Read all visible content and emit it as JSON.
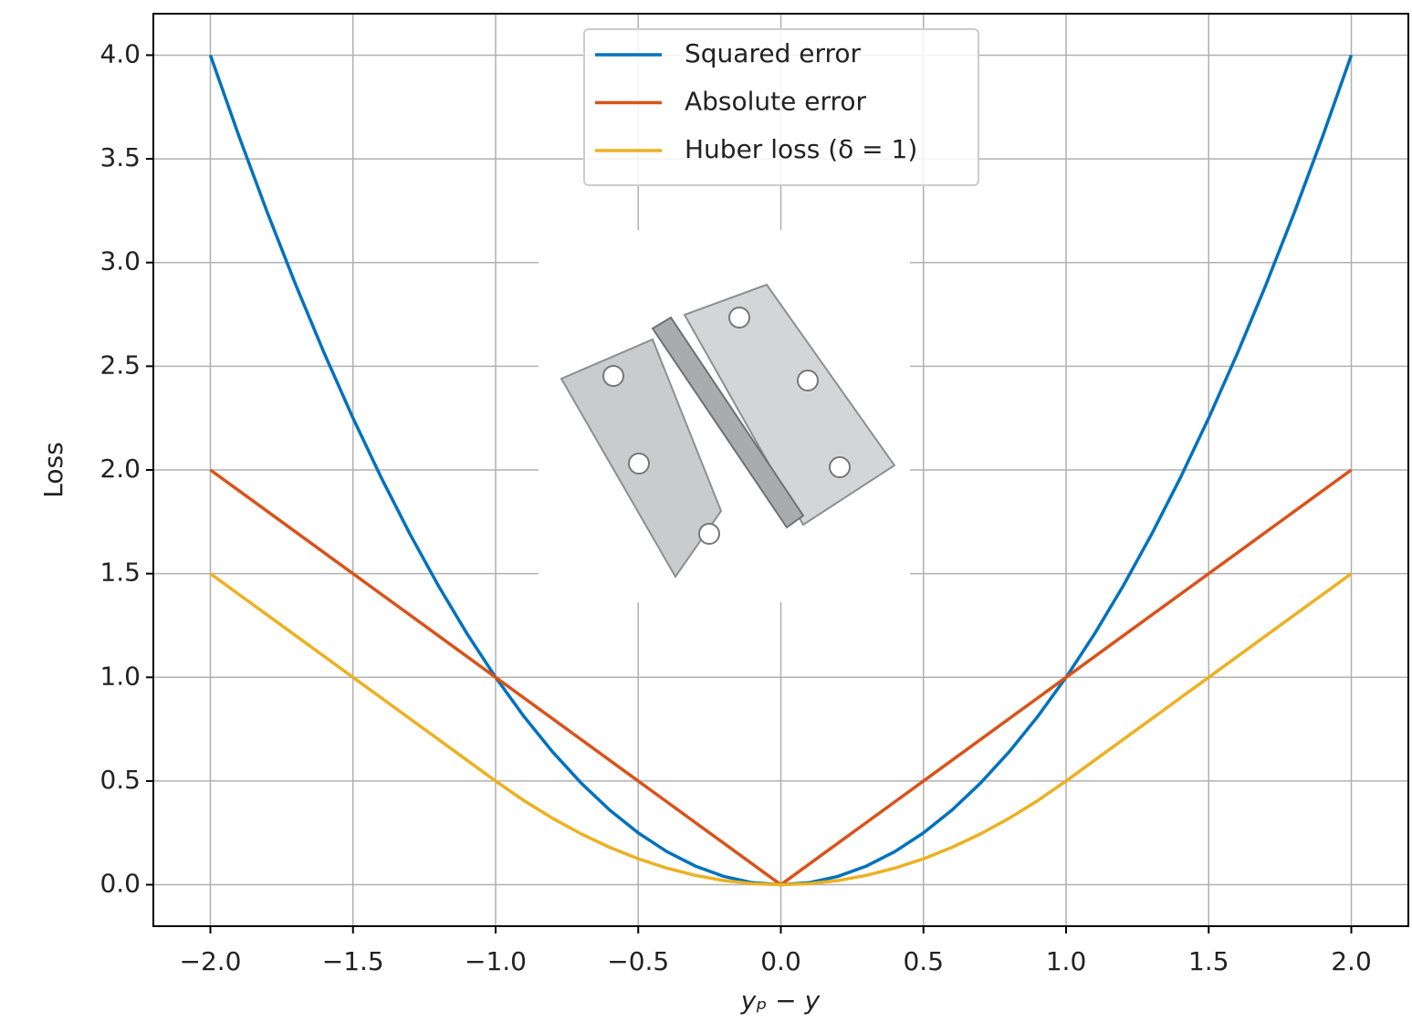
{
  "chart_data": {
    "type": "line",
    "x": [
      -2.0,
      -1.9,
      -1.8,
      -1.7,
      -1.6,
      -1.5,
      -1.4,
      -1.3,
      -1.2,
      -1.1,
      -1.0,
      -0.9,
      -0.8,
      -0.7,
      -0.6,
      -0.5,
      -0.4,
      -0.3,
      -0.2,
      -0.1,
      0.0,
      0.1,
      0.2,
      0.3,
      0.4,
      0.5,
      0.6,
      0.7,
      0.8,
      0.9,
      1.0,
      1.1,
      1.2,
      1.3,
      1.4,
      1.5,
      1.6,
      1.7,
      1.8,
      1.9,
      2.0
    ],
    "series": [
      {
        "name": "Squared error",
        "color": "#0072bd",
        "values": [
          4,
          3.61,
          3.24,
          2.89,
          2.56,
          2.25,
          1.96,
          1.69,
          1.44,
          1.21,
          1,
          0.81,
          0.64,
          0.49,
          0.36,
          0.25,
          0.16,
          0.09,
          0.04,
          0.01,
          0,
          0.01,
          0.04,
          0.09,
          0.16,
          0.25,
          0.36,
          0.49,
          0.64,
          0.81,
          1,
          1.21,
          1.44,
          1.69,
          1.96,
          2.25,
          2.56,
          2.89,
          3.24,
          3.61,
          4
        ]
      },
      {
        "name": "Absolute error",
        "color": "#d95319",
        "values": [
          2,
          1.9,
          1.8,
          1.7,
          1.6,
          1.5,
          1.4,
          1.3,
          1.2,
          1.1,
          1,
          0.9,
          0.8,
          0.7,
          0.6,
          0.5,
          0.4,
          0.3,
          0.2,
          0.1,
          0,
          0.1,
          0.2,
          0.3,
          0.4,
          0.5,
          0.6,
          0.7,
          0.8,
          0.9,
          1,
          1.1,
          1.2,
          1.3,
          1.4,
          1.5,
          1.6,
          1.7,
          1.8,
          1.9,
          2
        ]
      },
      {
        "name": "Huber loss (δ = 1)",
        "color": "#edb120",
        "values": [
          1.5,
          1.4,
          1.3,
          1.2,
          1.1,
          1.0,
          0.9,
          0.8,
          0.7,
          0.6,
          0.5,
          0.405,
          0.32,
          0.245,
          0.18,
          0.125,
          0.08,
          0.045,
          0.02,
          0.005,
          0,
          0.005,
          0.02,
          0.045,
          0.08,
          0.125,
          0.18,
          0.245,
          0.32,
          0.405,
          0.5,
          0.6,
          0.7,
          0.8,
          0.9,
          1.0,
          1.1,
          1.2,
          1.3,
          1.4,
          1.5
        ]
      }
    ],
    "x_label": "yₚ − y",
    "y_label": "Loss",
    "xlim": [
      -2.2,
      2.2
    ],
    "ylim": [
      -0.2,
      4.2
    ],
    "xticks": [
      {
        "value": -2,
        "label": "−2.0"
      },
      {
        "value": -1.5,
        "label": "−1.5"
      },
      {
        "value": -1,
        "label": "−1.0"
      },
      {
        "value": -0.5,
        "label": "−0.5"
      },
      {
        "value": 0,
        "label": "0.0"
      },
      {
        "value": 0.5,
        "label": "0.5"
      },
      {
        "value": 1,
        "label": "1.0"
      },
      {
        "value": 1.5,
        "label": "1.5"
      },
      {
        "value": 2,
        "label": "2.0"
      }
    ],
    "yticks": [
      {
        "value": 0,
        "label": "0.0"
      },
      {
        "value": 0.5,
        "label": "0.5"
      },
      {
        "value": 1,
        "label": "1.0"
      },
      {
        "value": 1.5,
        "label": "1.5"
      },
      {
        "value": 2,
        "label": "2.0"
      },
      {
        "value": 2.5,
        "label": "2.5"
      },
      {
        "value": 3,
        "label": "3.0"
      },
      {
        "value": 3.5,
        "label": "3.5"
      },
      {
        "value": 4,
        "label": "4.0"
      }
    ],
    "grid": true,
    "legend": "upper center"
  }
}
